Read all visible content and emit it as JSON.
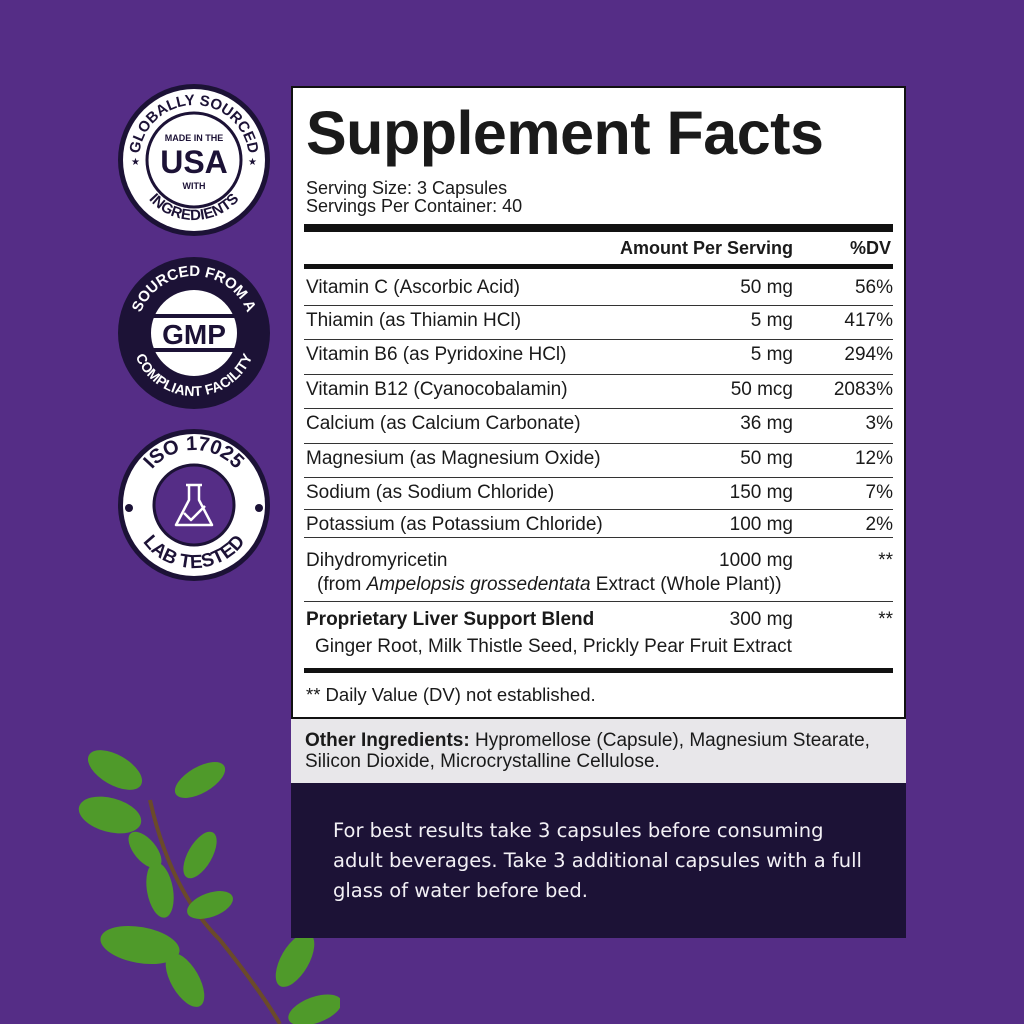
{
  "badges": [
    {
      "top": "GLOBALLY SOURCED",
      "center_small": "MADE IN THE",
      "center_big": "USA",
      "center_under": "WITH",
      "bottom": "INGREDIENTS",
      "icon": "star-icon"
    },
    {
      "top": "SOURCED FROM A",
      "center_big": "GMP",
      "bottom": "COMPLIANT FACILITY"
    },
    {
      "top": "ISO 17025",
      "bottom": "LAB TESTED",
      "icon": "flask-check-icon"
    }
  ],
  "facts": {
    "title": "Supplement Facts",
    "serving_size": "Serving Size: 3 Capsules",
    "servings_per_container": "Servings Per Container: 40",
    "header_amount": "Amount Per Serving",
    "header_dv": "%DV",
    "rows": [
      {
        "name": "Vitamin C (Ascorbic Acid)",
        "amount": "50 mg",
        "dv": "56%"
      },
      {
        "name": "Thiamin (as Thiamin HCl)",
        "amount": "5 mg",
        "dv": "417%"
      },
      {
        "name": "Vitamin B6 (as Pyridoxine HCl)",
        "amount": "5 mg",
        "dv": "294%"
      },
      {
        "name": "Vitamin B12 (Cyanocobalamin)",
        "amount": "50 mcg",
        "dv": "2083%"
      },
      {
        "name": "Calcium (as Calcium Carbonate)",
        "amount": "36 mg",
        "dv": "3%"
      },
      {
        "name": "Magnesium (as Magnesium Oxide)",
        "amount": "50 mg",
        "dv": "12%"
      },
      {
        "name": "Sodium (as Sodium Chloride)",
        "amount": "150 mg",
        "dv": "7%"
      },
      {
        "name": "Potassium (as Potassium Chloride)",
        "amount": "100 mg",
        "dv": "2%"
      }
    ],
    "dhm": {
      "name": "Dihydromyricetin",
      "amount": "1000 mg",
      "dv": "**",
      "source_prefix": "(from ",
      "source_italic": "Ampelopsis grossedentata",
      "source_suffix": " Extract (Whole Plant))"
    },
    "blend": {
      "name": "Proprietary Liver Support Blend",
      "amount": "300 mg",
      "dv": "**",
      "ingredients": "Ginger Root, Milk Thistle Seed, Prickly Pear Fruit Extract"
    },
    "footnote": "** Daily Value (DV) not established."
  },
  "other_ingredients": {
    "label": "Other Ingredients:",
    "text": " Hypromellose (Capsule), Magnesium Stearate, Silicon Dioxide, Microcrystalline Cellulose."
  },
  "directions": "For best results take 3 capsules before consuming adult beverages. Take 3 additional capsules with a full glass of water before bed.",
  "colors": {
    "background": "#552d86",
    "badge_dark": "#1c1236",
    "directions_bg": "#1c1236",
    "other_bg": "#e8e7ea",
    "leaf": "#4f9a2a"
  }
}
